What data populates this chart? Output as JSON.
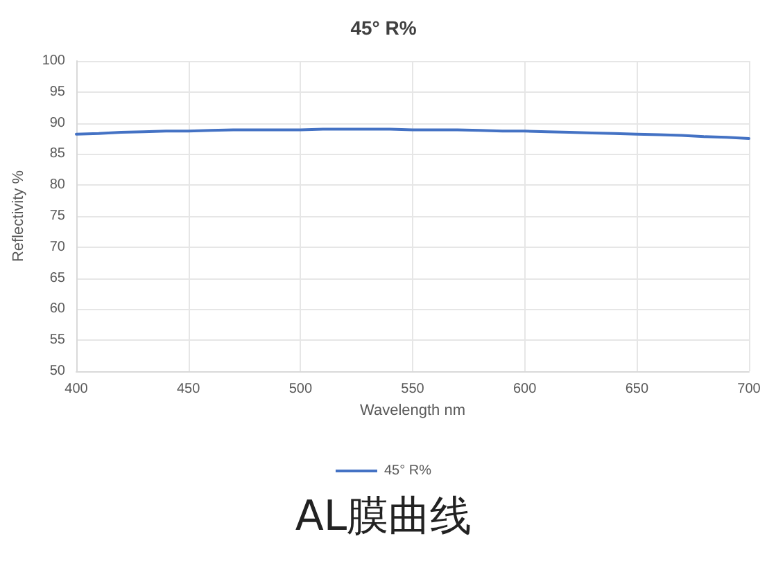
{
  "chart_data": {
    "type": "line",
    "title": "45° R%",
    "xlabel": "Wavelength nm",
    "ylabel": "Reflectivity %",
    "x": [
      400,
      410,
      420,
      430,
      440,
      450,
      460,
      470,
      480,
      490,
      500,
      510,
      520,
      530,
      540,
      550,
      560,
      570,
      580,
      590,
      600,
      610,
      620,
      630,
      640,
      650,
      660,
      670,
      680,
      690,
      700
    ],
    "series": [
      {
        "name": "45° R%",
        "color": "#4472c4",
        "values": [
          88.2,
          88.3,
          88.5,
          88.6,
          88.7,
          88.7,
          88.8,
          88.9,
          88.9,
          88.9,
          88.9,
          89.0,
          89.0,
          89.0,
          89.0,
          88.9,
          88.9,
          88.9,
          88.8,
          88.7,
          88.7,
          88.6,
          88.5,
          88.4,
          88.3,
          88.2,
          88.1,
          88.0,
          87.8,
          87.7,
          87.5
        ]
      }
    ],
    "xlim": [
      400,
      700
    ],
    "xticks": [
      400,
      450,
      500,
      550,
      600,
      650,
      700
    ],
    "ylim": [
      50,
      100
    ],
    "yticks": [
      50,
      55,
      60,
      65,
      70,
      75,
      80,
      85,
      90,
      95,
      100
    ],
    "grid": true,
    "legend": "bottom",
    "marker": "none",
    "line_style": "solid",
    "annotations": [
      "AL膜曲线"
    ]
  }
}
